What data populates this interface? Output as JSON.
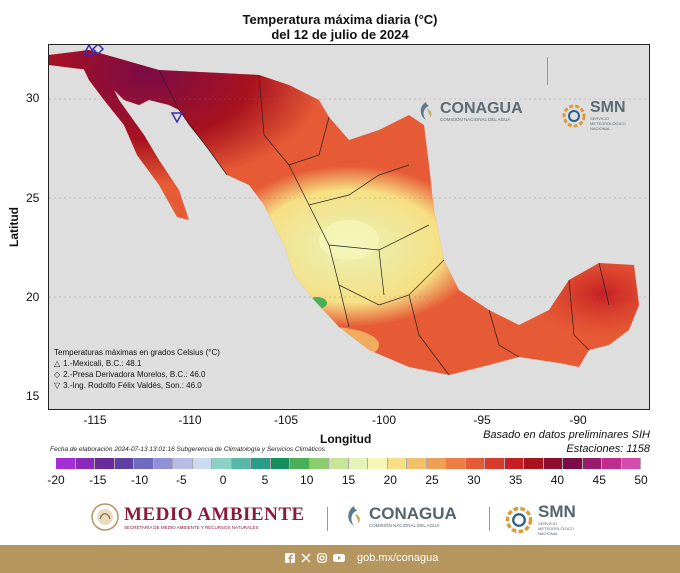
{
  "header": {
    "title_line1": "Temperatura máxima diaria (°C)",
    "title_line2": "del 12 de julio de 2024"
  },
  "axes": {
    "y_ticks": [
      "30",
      "25",
      "20",
      "15"
    ],
    "x_ticks": [
      "-115",
      "-110",
      "-105",
      "-100",
      "-95",
      "-90"
    ],
    "y_title": "Latitud",
    "x_title": "Longitud"
  },
  "legend": {
    "heading": "Temperaturas máximas en grados Celsius (°C)",
    "items": [
      {
        "symbol": "△",
        "label": "1.-Mexicali, B.C.: 48.1"
      },
      {
        "symbol": "◇",
        "label": "2.-Presa Derivadora Morelos, B.C.: 46.0"
      },
      {
        "symbol": "▽",
        "label": "3.-Ing. Rodolfo Félix Valdés, Son.: 46.0"
      }
    ]
  },
  "notes": {
    "fecha": "Fecha de elaboración 2024-07-13 13:01:16 Subgerencia de Climatología y Servicios Climáticos",
    "basado": "Basado en datos preliminares SIH",
    "estaciones": "Estaciones:  1158"
  },
  "colorbar": {
    "labels": [
      "-20",
      "-15",
      "-10",
      "-5",
      "0",
      "5",
      "10",
      "15",
      "20",
      "25",
      "30",
      "35",
      "40",
      "45",
      "50"
    ],
    "colors": [
      "#a52fd6",
      "#8a2ab8",
      "#6a2a9c",
      "#5f3fa6",
      "#6f6bc0",
      "#8f93d6",
      "#b8bde8",
      "#ccd9ee",
      "#8dd1c4",
      "#56b8a7",
      "#2a9c88",
      "#138f60",
      "#4aaf57",
      "#8ccd6e",
      "#c6e59a",
      "#e7f3b6",
      "#f6f6b8",
      "#f6df84",
      "#f3c16a",
      "#f09f55",
      "#ec7d44",
      "#e65a35",
      "#d93a2b",
      "#c51f24",
      "#a9121f",
      "#8e0c2e",
      "#7c0b47",
      "#9a1b6b",
      "#c02b8e",
      "#d54cac"
    ]
  },
  "logos": {
    "map_conagua": "CONAGUA",
    "map_conagua_sub": "COMISIÓN NACIONAL DEL AGUA",
    "map_smn": "SMN",
    "map_smn_sub": "SERVICIO METEOROLÓGICO NACIONAL",
    "footer_medio": "MEDIO AMBIENTE",
    "footer_medio_sub": "SECRETARÍA DE MEDIO AMBIENTE Y RECURSOS NATURALES",
    "footer_conagua": "CONAGUA",
    "footer_conagua_sub": "COMISIÓN NACIONAL DEL AGUA",
    "footer_smn": "SMN",
    "footer_smn_sub": "SERVICIO METEOROLÓGICO NACIONAL"
  },
  "footer": {
    "site": "gob.mx/conagua",
    "icons": [
      "facebook-icon",
      "x-icon",
      "instagram-icon",
      "youtube-icon"
    ]
  }
}
